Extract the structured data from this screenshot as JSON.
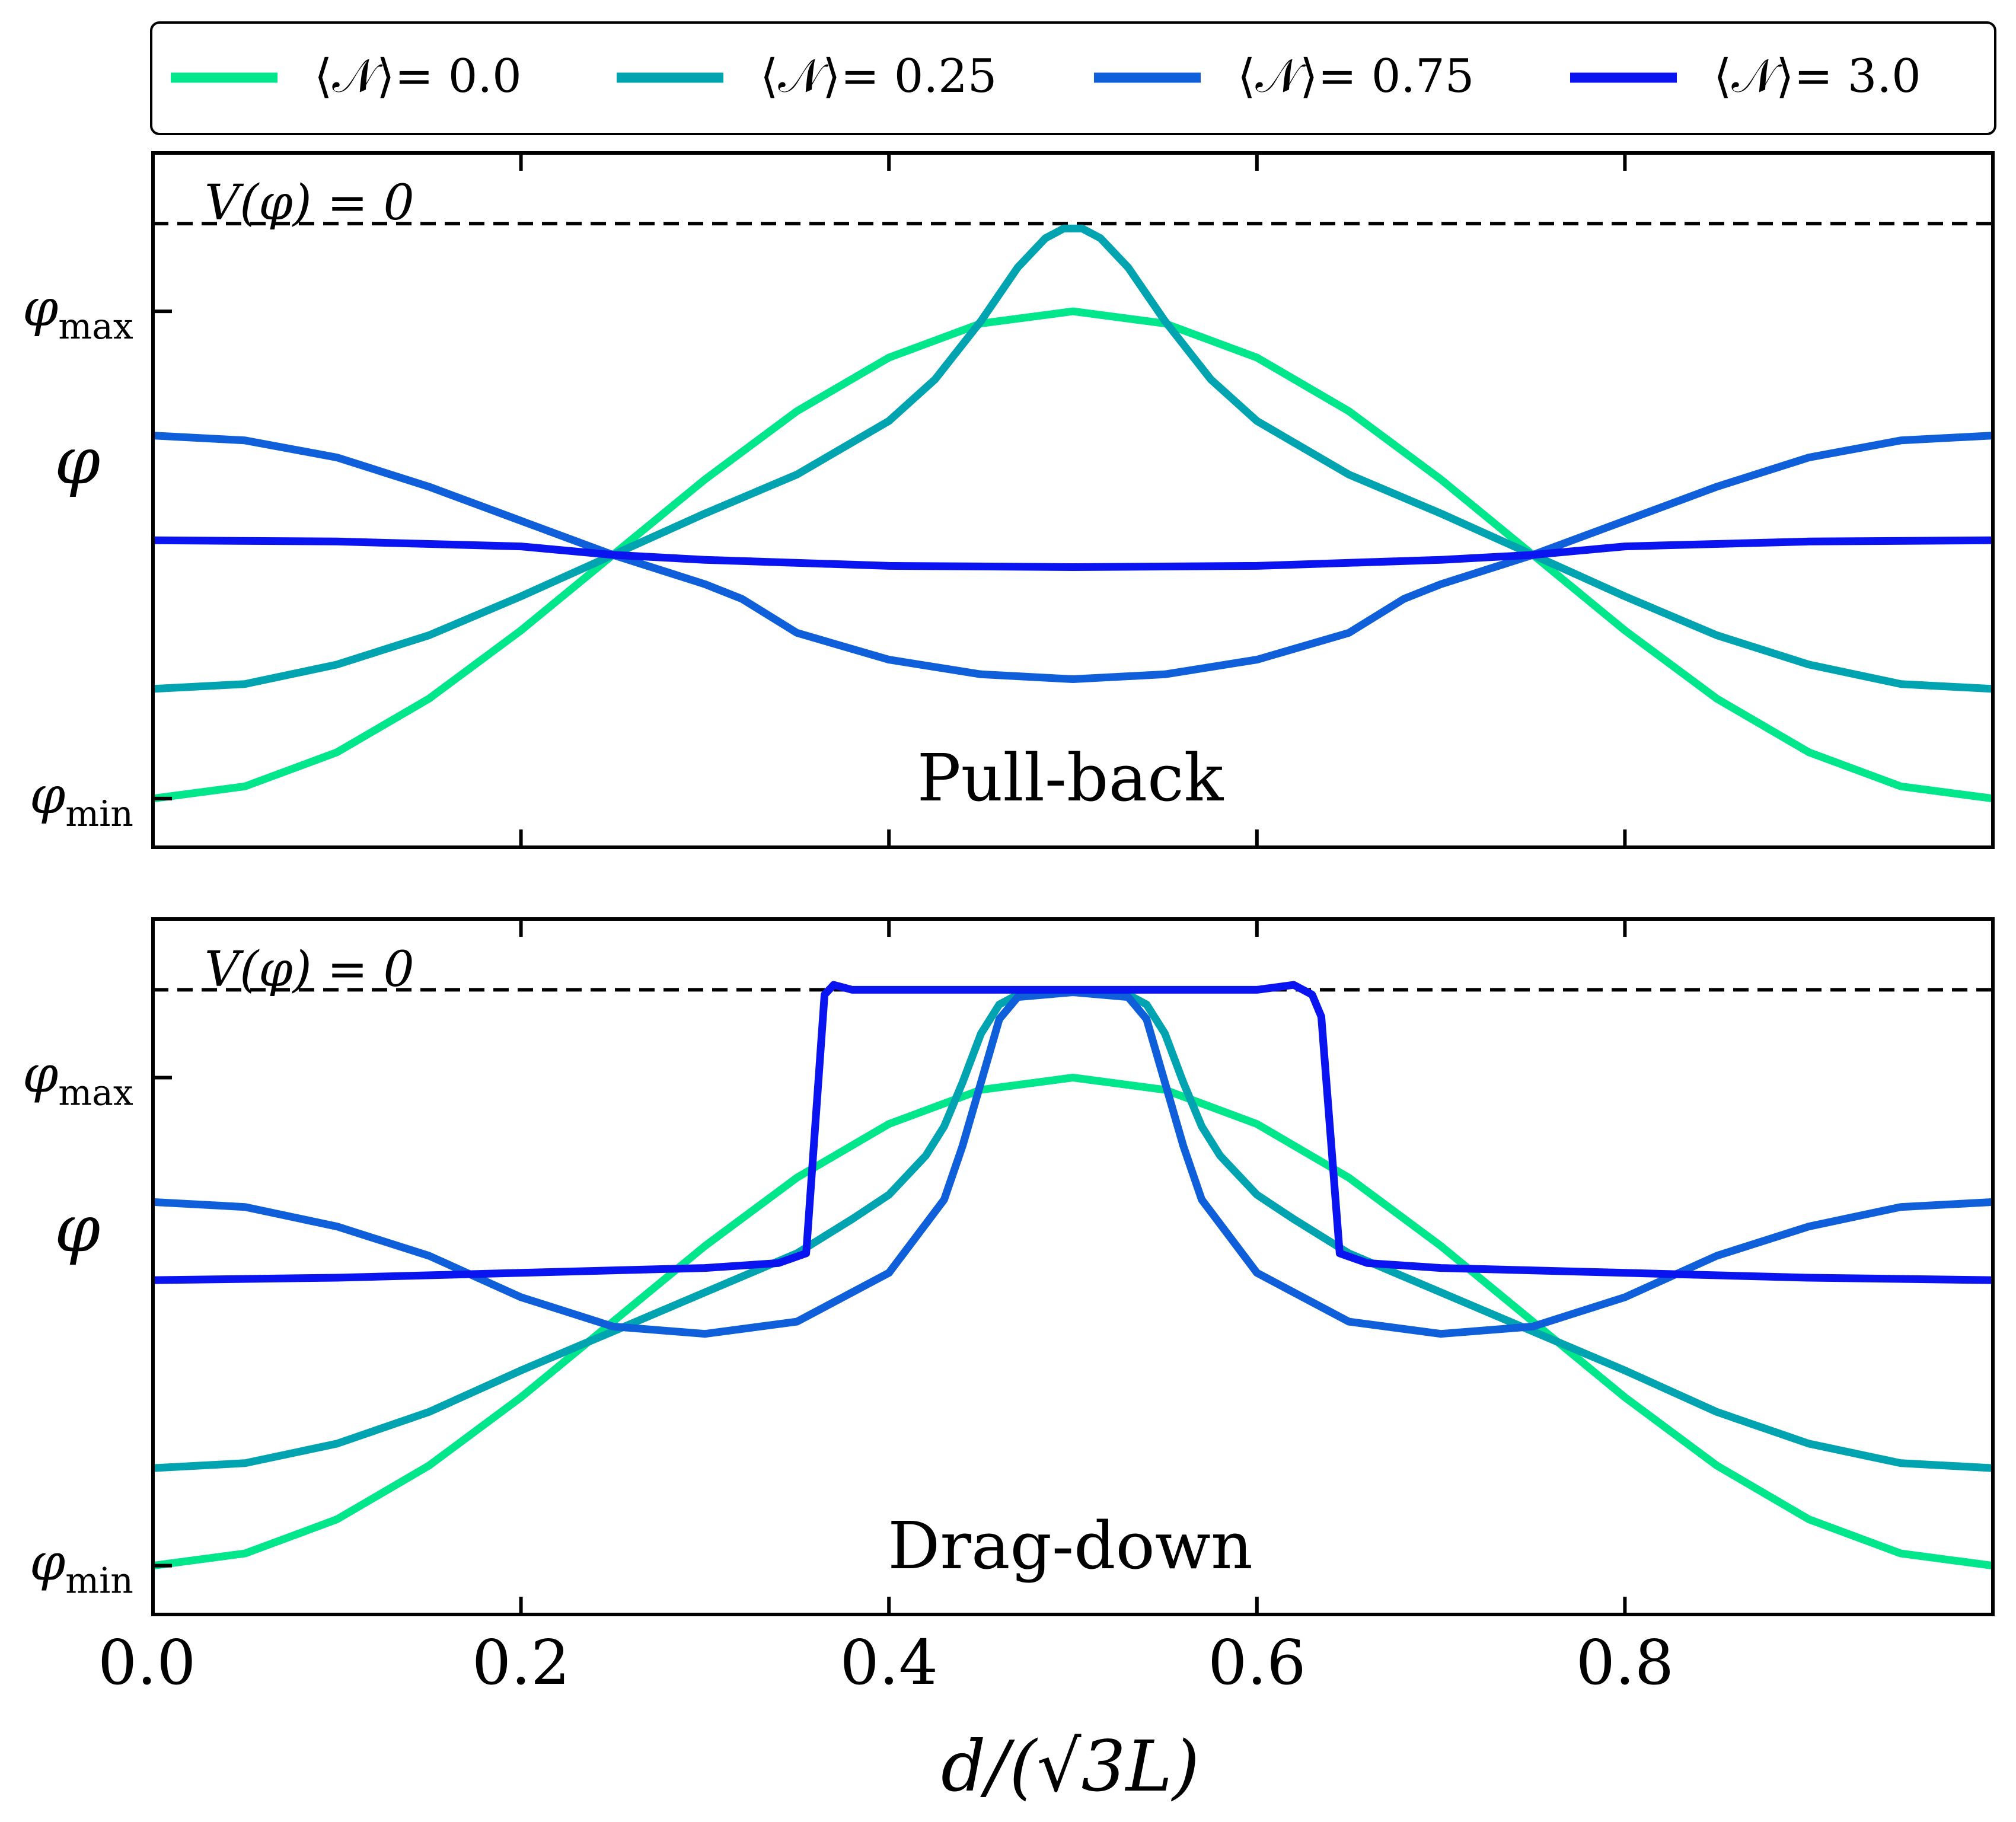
{
  "legend": {
    "entries": [
      {
        "label": "⟨𝒩⟩= 0.0",
        "color": "#00e68a"
      },
      {
        "label": "⟨𝒩⟩= 0.25",
        "color": "#00a3b0"
      },
      {
        "label": "⟨𝒩⟩= 0.75",
        "color": "#0f5fdb"
      },
      {
        "label": "⟨𝒩⟩= 3.0",
        "color": "#0a14f0"
      }
    ]
  },
  "axes": {
    "xlabel": "d/(√3L)",
    "ylabel": "φ",
    "xticks": [
      "0.0",
      "0.2",
      "0.4",
      "0.6",
      "0.8"
    ],
    "ytick_max_base": "φ",
    "ytick_max_sub": "max",
    "ytick_min_base": "φ",
    "ytick_min_sub": "min",
    "vline_label": "V(φ) = 0"
  },
  "chart_data": [
    {
      "type": "line",
      "title": "Pull-back",
      "xlabel": "d/(√3L)",
      "ylabel": "φ",
      "xlim": [
        0.0,
        1.0
      ],
      "ylim": [
        -1.2,
        1.65
      ],
      "reference_line": {
        "label": "V(φ) = 0",
        "y": 1.36,
        "style": "dashed",
        "color": "#000000"
      },
      "yticks": [
        {
          "label": "φ_min",
          "y": -1.0
        },
        {
          "label": "φ_max",
          "y": 1.0
        }
      ],
      "series": [
        {
          "name": "⟨𝒩⟩= 0.0",
          "color": "#00e68a",
          "x": [
            0.0,
            0.05,
            0.1,
            0.15,
            0.2,
            0.25,
            0.3,
            0.35,
            0.4,
            0.45,
            0.5,
            0.55,
            0.6,
            0.65,
            0.7,
            0.75,
            0.8,
            0.85,
            0.9,
            0.95,
            1.0
          ],
          "y": [
            -1.0,
            -0.95,
            -0.81,
            -0.59,
            -0.31,
            0.0,
            0.31,
            0.59,
            0.81,
            0.95,
            1.0,
            0.95,
            0.81,
            0.59,
            0.31,
            0.0,
            -0.31,
            -0.59,
            -0.81,
            -0.95,
            -1.0
          ]
        },
        {
          "name": "⟨𝒩⟩= 0.25",
          "color": "#00a3b0",
          "x": [
            0.0,
            0.05,
            0.1,
            0.15,
            0.2,
            0.25,
            0.3,
            0.35,
            0.4,
            0.425,
            0.45,
            0.47,
            0.485,
            0.495,
            0.5,
            0.505,
            0.515,
            0.53,
            0.55,
            0.575,
            0.6,
            0.65,
            0.7,
            0.75,
            0.8,
            0.85,
            0.9,
            0.95,
            1.0
          ],
          "y": [
            -0.55,
            -0.53,
            -0.45,
            -0.33,
            -0.17,
            0.0,
            0.17,
            0.33,
            0.55,
            0.72,
            0.96,
            1.18,
            1.3,
            1.34,
            1.34,
            1.34,
            1.3,
            1.18,
            0.96,
            0.72,
            0.55,
            0.33,
            0.17,
            0.0,
            -0.17,
            -0.33,
            -0.45,
            -0.53,
            -0.55
          ]
        },
        {
          "name": "⟨𝒩⟩= 0.75",
          "color": "#0f5fdb",
          "x": [
            0.0,
            0.05,
            0.1,
            0.15,
            0.2,
            0.25,
            0.3,
            0.32,
            0.35,
            0.4,
            0.45,
            0.5,
            0.55,
            0.6,
            0.65,
            0.68,
            0.7,
            0.75,
            0.8,
            0.85,
            0.9,
            0.95,
            1.0
          ],
          "y": [
            0.49,
            0.47,
            0.4,
            0.28,
            0.14,
            0.0,
            -0.12,
            -0.18,
            -0.32,
            -0.43,
            -0.49,
            -0.51,
            -0.49,
            -0.43,
            -0.32,
            -0.18,
            -0.12,
            0.0,
            0.14,
            0.28,
            0.4,
            0.47,
            0.49
          ]
        },
        {
          "name": "⟨𝒩⟩= 3.0",
          "color": "#0a14f0",
          "x": [
            0.0,
            0.1,
            0.2,
            0.25,
            0.3,
            0.4,
            0.5,
            0.6,
            0.7,
            0.75,
            0.8,
            0.9,
            1.0
          ],
          "y": [
            0.06,
            0.055,
            0.035,
            0.0,
            -0.02,
            -0.045,
            -0.05,
            -0.045,
            -0.02,
            0.0,
            0.035,
            0.055,
            0.06
          ]
        }
      ]
    },
    {
      "type": "line",
      "title": "Drag-down",
      "xlabel": "d/(√3L)",
      "ylabel": "φ",
      "xlim": [
        0.0,
        1.0
      ],
      "ylim": [
        -1.2,
        1.65
      ],
      "reference_line": {
        "label": "V(φ) = 0",
        "y": 1.36,
        "style": "dashed",
        "color": "#000000"
      },
      "yticks": [
        {
          "label": "φ_min",
          "y": -1.0
        },
        {
          "label": "φ_max",
          "y": 1.0
        }
      ],
      "series": [
        {
          "name": "⟨𝒩⟩= 0.0",
          "color": "#00e68a",
          "x": [
            0.0,
            0.05,
            0.1,
            0.15,
            0.2,
            0.25,
            0.3,
            0.35,
            0.4,
            0.45,
            0.5,
            0.55,
            0.6,
            0.65,
            0.7,
            0.75,
            0.8,
            0.85,
            0.9,
            0.95,
            1.0
          ],
          "y": [
            -1.0,
            -0.95,
            -0.81,
            -0.59,
            -0.31,
            0.0,
            0.31,
            0.59,
            0.81,
            0.95,
            1.0,
            0.95,
            0.81,
            0.59,
            0.31,
            0.0,
            -0.31,
            -0.59,
            -0.81,
            -0.95,
            -1.0
          ]
        },
        {
          "name": "⟨𝒩⟩= 0.25",
          "color": "#00a3b0",
          "x": [
            0.0,
            0.05,
            0.1,
            0.15,
            0.2,
            0.25,
            0.3,
            0.35,
            0.38,
            0.4,
            0.42,
            0.43,
            0.44,
            0.45,
            0.46,
            0.47,
            0.5,
            0.53,
            0.54,
            0.55,
            0.56,
            0.57,
            0.58,
            0.6,
            0.62,
            0.65,
            0.7,
            0.75,
            0.8,
            0.85,
            0.9,
            0.95,
            1.0
          ],
          "y": [
            -0.6,
            -0.58,
            -0.5,
            -0.37,
            -0.2,
            -0.04,
            0.12,
            0.28,
            0.42,
            0.52,
            0.68,
            0.8,
            0.98,
            1.18,
            1.3,
            1.34,
            1.35,
            1.34,
            1.3,
            1.18,
            0.98,
            0.8,
            0.68,
            0.52,
            0.42,
            0.28,
            0.12,
            -0.04,
            -0.2,
            -0.37,
            -0.5,
            -0.58,
            -0.6
          ]
        },
        {
          "name": "⟨𝒩⟩= 0.75",
          "color": "#0f5fdb",
          "x": [
            0.0,
            0.05,
            0.1,
            0.15,
            0.2,
            0.25,
            0.3,
            0.35,
            0.4,
            0.43,
            0.44,
            0.45,
            0.46,
            0.47,
            0.5,
            0.53,
            0.54,
            0.55,
            0.56,
            0.57,
            0.6,
            0.65,
            0.7,
            0.75,
            0.8,
            0.85,
            0.9,
            0.95,
            1.0
          ],
          "y": [
            0.49,
            0.47,
            0.39,
            0.27,
            0.1,
            -0.02,
            -0.05,
            0.0,
            0.2,
            0.5,
            0.72,
            0.98,
            1.24,
            1.33,
            1.35,
            1.33,
            1.24,
            0.98,
            0.72,
            0.5,
            0.2,
            0.0,
            -0.05,
            -0.02,
            0.1,
            0.27,
            0.39,
            0.47,
            0.49
          ]
        },
        {
          "name": "⟨𝒩⟩= 3.0",
          "color": "#0a14f0",
          "x": [
            0.0,
            0.1,
            0.2,
            0.3,
            0.34,
            0.355,
            0.365,
            0.37,
            0.38,
            0.4,
            0.5,
            0.6,
            0.62,
            0.63,
            0.635,
            0.645,
            0.66,
            0.7,
            0.8,
            0.9,
            1.0
          ],
          "y": [
            0.17,
            0.18,
            0.2,
            0.22,
            0.24,
            0.28,
            1.34,
            1.38,
            1.36,
            1.36,
            1.36,
            1.36,
            1.38,
            1.34,
            1.25,
            0.28,
            0.24,
            0.22,
            0.2,
            0.18,
            0.17
          ]
        }
      ]
    }
  ]
}
